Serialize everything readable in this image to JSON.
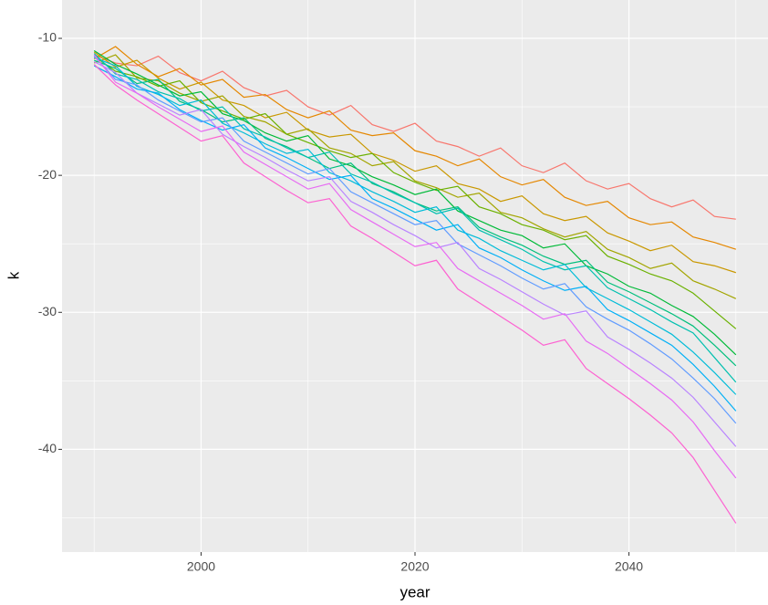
{
  "chart_data": {
    "type": "line",
    "x_label": "year",
    "y_label": "k",
    "x": [
      1990,
      1992,
      1994,
      1996,
      1998,
      2000,
      2002,
      2004,
      2006,
      2008,
      2010,
      2012,
      2014,
      2016,
      2018,
      2020,
      2022,
      2024,
      2026,
      2028,
      2030,
      2032,
      2034,
      2036,
      2038,
      2040,
      2042,
      2044,
      2046,
      2048,
      2050
    ],
    "xlim": [
      1987,
      2053
    ],
    "xticks": [
      2000,
      2020,
      2040
    ],
    "ylim": [
      -47.5,
      -7.2
    ],
    "yticks": [
      -10,
      -20,
      -30,
      -40
    ],
    "grid": true,
    "minor_grid": true,
    "background": "#EBEBEB",
    "series": [
      {
        "color": "#F8766D",
        "values": [
          -11.2,
          -11.8,
          -12.0,
          -11.3,
          -12.5,
          -13.1,
          -12.4,
          -13.6,
          -14.2,
          -13.8,
          -15.0,
          -15.6,
          -14.9,
          -16.3,
          -16.8,
          -16.2,
          -17.5,
          -17.9,
          -18.6,
          -18.0,
          -19.3,
          -19.8,
          -19.1,
          -20.4,
          -21.0,
          -20.6,
          -21.7,
          -22.3,
          -21.8,
          -23.0,
          -23.2
        ]
      },
      {
        "color": "#E58700",
        "values": [
          -11.5,
          -10.6,
          -11.9,
          -12.8,
          -12.2,
          -13.4,
          -13.0,
          -14.3,
          -14.1,
          -15.2,
          -15.8,
          -15.3,
          -16.7,
          -17.1,
          -16.9,
          -18.2,
          -18.6,
          -19.3,
          -18.8,
          -20.1,
          -20.7,
          -20.3,
          -21.6,
          -22.2,
          -21.9,
          -23.1,
          -23.6,
          -23.4,
          -24.5,
          -24.9,
          -25.4
        ]
      },
      {
        "color": "#C99800",
        "values": [
          -11.0,
          -12.1,
          -11.6,
          -12.9,
          -13.7,
          -13.2,
          -14.5,
          -14.9,
          -15.8,
          -15.4,
          -16.7,
          -17.2,
          -17.0,
          -18.4,
          -18.9,
          -19.7,
          -19.3,
          -20.6,
          -21.0,
          -21.9,
          -21.5,
          -22.8,
          -23.3,
          -23.0,
          -24.2,
          -24.8,
          -25.5,
          -25.1,
          -26.3,
          -26.6,
          -27.1
        ]
      },
      {
        "color": "#A3A500",
        "values": [
          -11.8,
          -11.2,
          -12.9,
          -13.1,
          -14.0,
          -14.6,
          -14.2,
          -15.7,
          -16.1,
          -17.0,
          -16.6,
          -18.0,
          -18.4,
          -19.3,
          -19.0,
          -20.4,
          -20.9,
          -21.6,
          -21.3,
          -22.7,
          -23.1,
          -23.9,
          -24.5,
          -24.1,
          -25.4,
          -26.0,
          -26.8,
          -26.4,
          -27.7,
          -28.3,
          -29.0
        ]
      },
      {
        "color": "#6BB100",
        "values": [
          -11.3,
          -12.4,
          -12.8,
          -13.5,
          -13.1,
          -14.7,
          -15.3,
          -15.9,
          -15.5,
          -17.0,
          -17.6,
          -18.2,
          -18.7,
          -18.4,
          -19.8,
          -20.5,
          -21.1,
          -20.8,
          -22.3,
          -22.8,
          -23.6,
          -24.0,
          -24.7,
          -24.4,
          -25.9,
          -26.5,
          -27.2,
          -27.7,
          -28.6,
          -29.9,
          -31.2
        ]
      },
      {
        "color": "#00BA38",
        "values": [
          -10.9,
          -11.9,
          -12.6,
          -13.4,
          -14.2,
          -13.9,
          -15.5,
          -16.0,
          -16.9,
          -17.5,
          -17.1,
          -18.8,
          -19.3,
          -20.1,
          -20.7,
          -21.4,
          -21.0,
          -22.6,
          -23.3,
          -24.0,
          -24.4,
          -25.3,
          -25.0,
          -26.6,
          -27.2,
          -28.1,
          -28.6,
          -29.5,
          -30.3,
          -31.6,
          -33.1
        ]
      },
      {
        "color": "#00BF7D",
        "values": [
          -11.6,
          -12.2,
          -13.3,
          -13.0,
          -14.6,
          -15.2,
          -16.1,
          -15.8,
          -17.3,
          -17.9,
          -18.7,
          -19.5,
          -19.1,
          -20.6,
          -21.2,
          -22.0,
          -22.6,
          -22.3,
          -23.8,
          -24.5,
          -25.1,
          -25.9,
          -26.5,
          -26.2,
          -27.8,
          -28.5,
          -29.3,
          -30.1,
          -31.0,
          -32.4,
          -33.9
        ]
      },
      {
        "color": "#00C0AF",
        "values": [
          -11.1,
          -12.6,
          -13.0,
          -13.9,
          -14.4,
          -15.3,
          -15.0,
          -16.6,
          -17.2,
          -18.0,
          -18.7,
          -18.3,
          -19.9,
          -20.5,
          -21.3,
          -22.0,
          -22.8,
          -22.4,
          -24.0,
          -24.7,
          -25.4,
          -26.3,
          -26.9,
          -26.6,
          -28.2,
          -29.0,
          -29.8,
          -30.7,
          -31.5,
          -33.3,
          -35.1
        ]
      },
      {
        "color": "#00BCD8",
        "values": [
          -11.4,
          -12.0,
          -13.5,
          -14.1,
          -14.9,
          -14.5,
          -16.2,
          -16.9,
          -17.7,
          -18.4,
          -18.1,
          -19.8,
          -20.4,
          -21.2,
          -21.9,
          -22.7,
          -22.3,
          -24.0,
          -24.6,
          -25.5,
          -26.2,
          -26.9,
          -26.5,
          -28.2,
          -29.0,
          -29.8,
          -30.7,
          -31.6,
          -32.9,
          -34.4,
          -36.0
        ]
      },
      {
        "color": "#00B0F6",
        "values": [
          -12.0,
          -12.8,
          -13.7,
          -14.0,
          -15.2,
          -16.0,
          -16.7,
          -16.3,
          -18.0,
          -18.7,
          -19.5,
          -20.3,
          -20.0,
          -21.7,
          -22.4,
          -23.2,
          -24.0,
          -23.6,
          -25.3,
          -26.0,
          -26.9,
          -27.7,
          -28.4,
          -28.1,
          -29.8,
          -30.6,
          -31.5,
          -32.4,
          -33.8,
          -35.4,
          -37.2
        ]
      },
      {
        "color": "#619CFF",
        "values": [
          -11.3,
          -13.0,
          -13.4,
          -14.5,
          -15.3,
          -16.1,
          -15.8,
          -17.5,
          -18.3,
          -19.1,
          -19.9,
          -19.5,
          -21.2,
          -22.0,
          -22.8,
          -23.6,
          -23.3,
          -25.0,
          -25.8,
          -26.6,
          -27.5,
          -28.3,
          -27.9,
          -29.6,
          -30.5,
          -31.3,
          -32.3,
          -33.4,
          -34.8,
          -36.3,
          -38.1
        ]
      },
      {
        "color": "#B983FF",
        "values": [
          -11.7,
          -12.5,
          -14.0,
          -14.8,
          -15.6,
          -15.2,
          -17.0,
          -17.9,
          -18.7,
          -19.6,
          -20.4,
          -20.1,
          -21.9,
          -22.7,
          -23.6,
          -24.4,
          -25.3,
          -24.9,
          -26.8,
          -27.6,
          -28.5,
          -29.4,
          -30.2,
          -29.9,
          -31.8,
          -32.7,
          -33.7,
          -34.8,
          -36.2,
          -38.0,
          -39.8
        ]
      },
      {
        "color": "#E76BF3",
        "values": [
          -11.2,
          -13.2,
          -14.0,
          -15.0,
          -15.9,
          -16.8,
          -16.4,
          -18.3,
          -19.2,
          -20.1,
          -21.0,
          -20.6,
          -22.5,
          -23.4,
          -24.3,
          -25.2,
          -24.9,
          -26.8,
          -27.7,
          -28.6,
          -29.5,
          -30.5,
          -30.1,
          -32.1,
          -33.0,
          -34.1,
          -35.2,
          -36.4,
          -38.0,
          -40.1,
          -42.1
        ]
      },
      {
        "color": "#FD61D1",
        "values": [
          -11.9,
          -13.4,
          -14.5,
          -15.5,
          -16.5,
          -17.5,
          -17.1,
          -19.1,
          -20.1,
          -21.1,
          -22.0,
          -21.7,
          -23.7,
          -24.6,
          -25.6,
          -26.6,
          -26.2,
          -28.3,
          -29.3,
          -30.3,
          -31.3,
          -32.4,
          -32.0,
          -34.1,
          -35.2,
          -36.3,
          -37.5,
          -38.8,
          -40.6,
          -43.0,
          -45.4
        ]
      }
    ]
  }
}
